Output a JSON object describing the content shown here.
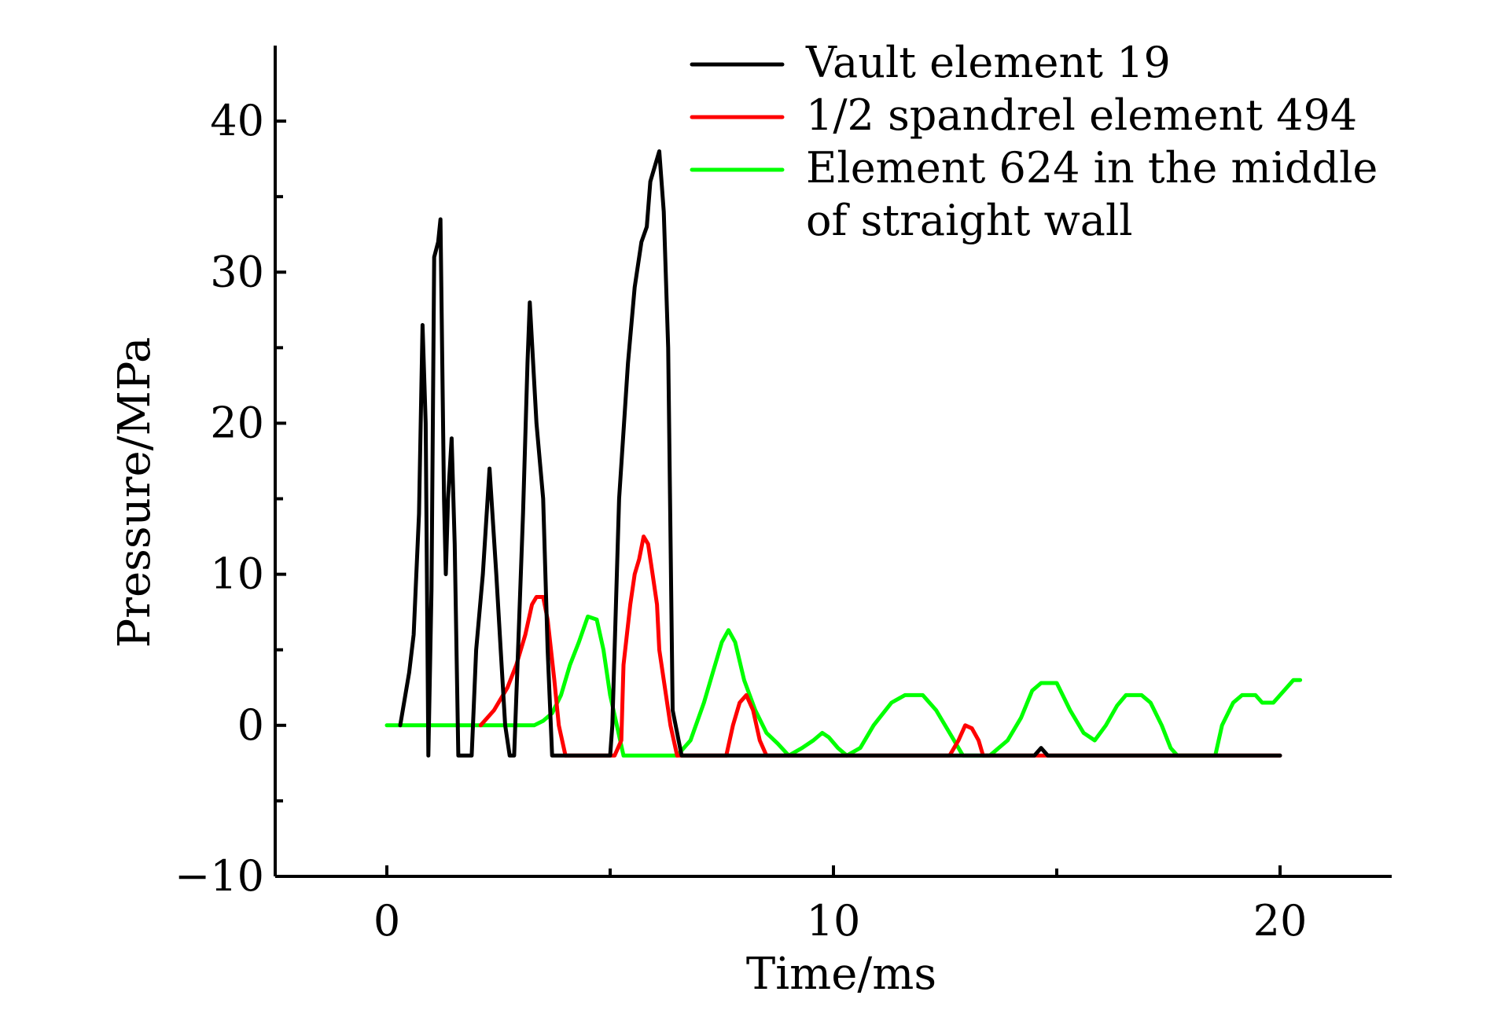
{
  "chart_data": {
    "type": "line",
    "title": "",
    "xlabel": "Time/ms",
    "ylabel": "Pressure/MPa",
    "xlim": [
      -2.5,
      22.5
    ],
    "ylim": [
      -10,
      45
    ],
    "x_ticks": [
      0,
      10,
      20
    ],
    "x_minor_ticks": [
      5,
      15
    ],
    "y_ticks": [
      -10,
      0,
      10,
      20,
      30,
      40
    ],
    "y_minor_ticks": [
      -5,
      5,
      15,
      25,
      35
    ],
    "grid": false,
    "legend": {
      "placement": "top-right",
      "lines": [
        "Vault element 19",
        "1/2 spandrel element 494",
        "Element 624 in the middle",
        "of straight wall"
      ]
    },
    "series": [
      {
        "name": "Vault element 19",
        "color": "#000000",
        "points": [
          [
            0.3,
            0
          ],
          [
            0.5,
            3.5
          ],
          [
            0.6,
            6
          ],
          [
            0.72,
            14
          ],
          [
            0.8,
            26.5
          ],
          [
            0.87,
            20
          ],
          [
            0.93,
            -2
          ],
          [
            1.0,
            9
          ],
          [
            1.06,
            31
          ],
          [
            1.15,
            32
          ],
          [
            1.2,
            33.5
          ],
          [
            1.28,
            15
          ],
          [
            1.32,
            10
          ],
          [
            1.37,
            15
          ],
          [
            1.45,
            19
          ],
          [
            1.52,
            12
          ],
          [
            1.6,
            -2
          ],
          [
            1.9,
            -2
          ],
          [
            2.0,
            5
          ],
          [
            2.15,
            10
          ],
          [
            2.3,
            17
          ],
          [
            2.45,
            10
          ],
          [
            2.55,
            5
          ],
          [
            2.65,
            0
          ],
          [
            2.75,
            -2
          ],
          [
            2.85,
            -2
          ],
          [
            2.95,
            6
          ],
          [
            3.05,
            14
          ],
          [
            3.15,
            24
          ],
          [
            3.2,
            28
          ],
          [
            3.35,
            20
          ],
          [
            3.5,
            15
          ],
          [
            3.6,
            5
          ],
          [
            3.7,
            -2
          ],
          [
            5.0,
            -2
          ],
          [
            5.05,
            0
          ],
          [
            5.2,
            15
          ],
          [
            5.4,
            24
          ],
          [
            5.55,
            29
          ],
          [
            5.7,
            32
          ],
          [
            5.82,
            33
          ],
          [
            5.9,
            36
          ],
          [
            6.0,
            37
          ],
          [
            6.1,
            38
          ],
          [
            6.2,
            34
          ],
          [
            6.3,
            25
          ],
          [
            6.4,
            1
          ],
          [
            6.6,
            -2
          ],
          [
            7.2,
            -2
          ],
          [
            8.2,
            -2
          ],
          [
            9.0,
            -2
          ],
          [
            14.5,
            -2
          ],
          [
            14.65,
            -1.5
          ],
          [
            14.8,
            -2
          ],
          [
            20.0,
            -2
          ]
        ]
      },
      {
        "name": "1/2 spandrel element 494",
        "color": "#ff0000",
        "points": [
          [
            2.1,
            0
          ],
          [
            2.4,
            1
          ],
          [
            2.7,
            2.5
          ],
          [
            2.9,
            4
          ],
          [
            3.1,
            6
          ],
          [
            3.25,
            8
          ],
          [
            3.35,
            8.5
          ],
          [
            3.5,
            8.5
          ],
          [
            3.6,
            7
          ],
          [
            3.75,
            3
          ],
          [
            3.85,
            0
          ],
          [
            4.0,
            -2
          ],
          [
            5.1,
            -2
          ],
          [
            5.25,
            -1
          ],
          [
            5.3,
            4
          ],
          [
            5.45,
            8
          ],
          [
            5.55,
            10
          ],
          [
            5.65,
            11
          ],
          [
            5.75,
            12.5
          ],
          [
            5.85,
            12
          ],
          [
            5.95,
            10
          ],
          [
            6.05,
            8
          ],
          [
            6.1,
            5
          ],
          [
            6.2,
            3
          ],
          [
            6.35,
            0
          ],
          [
            6.5,
            -2
          ],
          [
            7.6,
            -2
          ],
          [
            7.75,
            0
          ],
          [
            7.9,
            1.5
          ],
          [
            8.05,
            2
          ],
          [
            8.2,
            1
          ],
          [
            8.35,
            -1
          ],
          [
            8.5,
            -2
          ],
          [
            12.6,
            -2
          ],
          [
            12.8,
            -1
          ],
          [
            12.95,
            0
          ],
          [
            13.1,
            -0.2
          ],
          [
            13.25,
            -1
          ],
          [
            13.35,
            -2
          ],
          [
            20.0,
            -2
          ]
        ]
      },
      {
        "name": "Element 624 in the middle of straight wall",
        "color": "#00ff00",
        "points": [
          [
            0,
            0
          ],
          [
            3.3,
            0
          ],
          [
            3.5,
            0.3
          ],
          [
            3.7,
            0.8
          ],
          [
            3.9,
            2
          ],
          [
            4.1,
            4
          ],
          [
            4.3,
            5.5
          ],
          [
            4.5,
            7.2
          ],
          [
            4.7,
            7
          ],
          [
            4.85,
            5
          ],
          [
            5.0,
            2
          ],
          [
            5.15,
            0
          ],
          [
            5.3,
            -2
          ],
          [
            6.5,
            -2
          ],
          [
            6.8,
            -1
          ],
          [
            7.1,
            1.5
          ],
          [
            7.3,
            3.5
          ],
          [
            7.5,
            5.5
          ],
          [
            7.65,
            6.3
          ],
          [
            7.8,
            5.5
          ],
          [
            8.0,
            3
          ],
          [
            8.25,
            1
          ],
          [
            8.5,
            -0.5
          ],
          [
            8.75,
            -1.2
          ],
          [
            9.0,
            -2
          ],
          [
            9.3,
            -1.5
          ],
          [
            9.55,
            -1
          ],
          [
            9.75,
            -0.5
          ],
          [
            9.9,
            -0.8
          ],
          [
            10.1,
            -1.5
          ],
          [
            10.3,
            -2
          ],
          [
            10.6,
            -1.5
          ],
          [
            10.9,
            0
          ],
          [
            11.3,
            1.5
          ],
          [
            11.6,
            2
          ],
          [
            12.0,
            2
          ],
          [
            12.3,
            1
          ],
          [
            12.7,
            -1
          ],
          [
            12.9,
            -2
          ],
          [
            13.5,
            -2
          ],
          [
            13.9,
            -1
          ],
          [
            14.2,
            0.5
          ],
          [
            14.45,
            2.3
          ],
          [
            14.65,
            2.8
          ],
          [
            15.0,
            2.8
          ],
          [
            15.3,
            1
          ],
          [
            15.6,
            -0.5
          ],
          [
            15.85,
            -1
          ],
          [
            16.1,
            0
          ],
          [
            16.35,
            1.3
          ],
          [
            16.55,
            2
          ],
          [
            16.9,
            2
          ],
          [
            17.1,
            1.5
          ],
          [
            17.35,
            0
          ],
          [
            17.55,
            -1.5
          ],
          [
            17.7,
            -2
          ],
          [
            18.55,
            -2
          ],
          [
            18.7,
            0
          ],
          [
            18.95,
            1.5
          ],
          [
            19.15,
            2
          ],
          [
            19.45,
            2
          ],
          [
            19.6,
            1.5
          ],
          [
            19.85,
            1.5
          ],
          [
            20.0,
            2
          ],
          [
            20.15,
            2.5
          ],
          [
            20.3,
            3
          ],
          [
            20.45,
            3
          ]
        ]
      }
    ]
  }
}
